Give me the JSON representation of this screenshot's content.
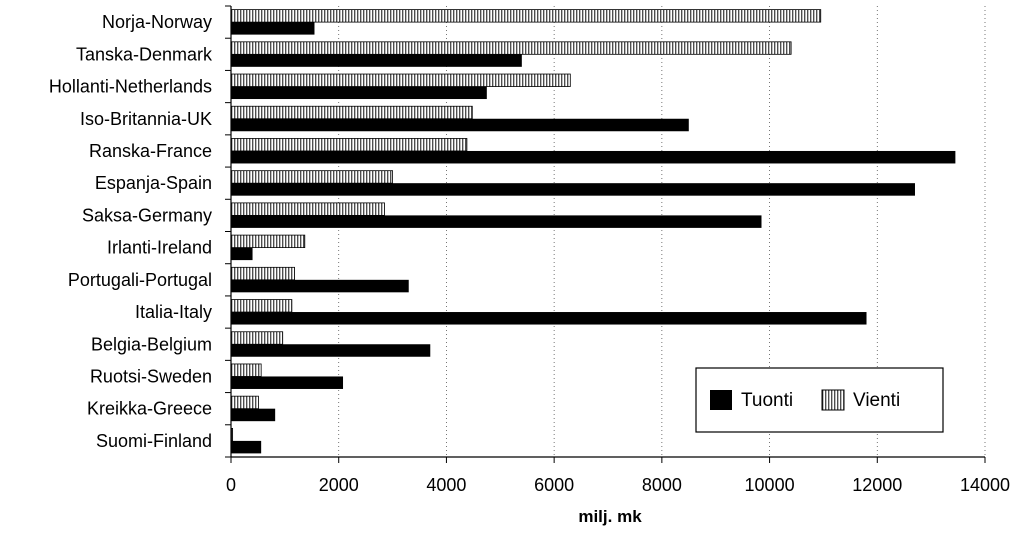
{
  "chart_data": {
    "type": "bar",
    "orientation": "horizontal",
    "categories": [
      "Norja-Norway",
      "Tanska-Denmark",
      "Hollanti-Netherlands",
      "Iso-Britannia-UK",
      "Ranska-France",
      "Espanja-Spain",
      "Saksa-Germany",
      "Irlanti-Ireland",
      "Portugali-Portugal",
      "Italia-Italy",
      "Belgia-Belgium",
      "Ruotsi-Sweden",
      "Kreikka-Greece",
      "Suomi-Finland"
    ],
    "series": [
      {
        "name": "Tuonti",
        "color": "#000000",
        "pattern": "solid",
        "values": [
          1550,
          5400,
          4750,
          8500,
          13450,
          12700,
          9850,
          400,
          3300,
          11800,
          3700,
          2080,
          820,
          560
        ]
      },
      {
        "name": "Vienti",
        "color": "#ffffff",
        "pattern": "vertical-hatch",
        "values": [
          10950,
          10400,
          6300,
          4480,
          4380,
          3000,
          2850,
          1370,
          1180,
          1130,
          960,
          560,
          510,
          30
        ]
      }
    ],
    "xlabel": "milj. mk",
    "xlim": [
      0,
      14000
    ],
    "xticks": [
      0,
      2000,
      4000,
      6000,
      8000,
      10000,
      12000,
      14000
    ],
    "grid": "vertical dotted",
    "legend_position": "bottom-right"
  }
}
